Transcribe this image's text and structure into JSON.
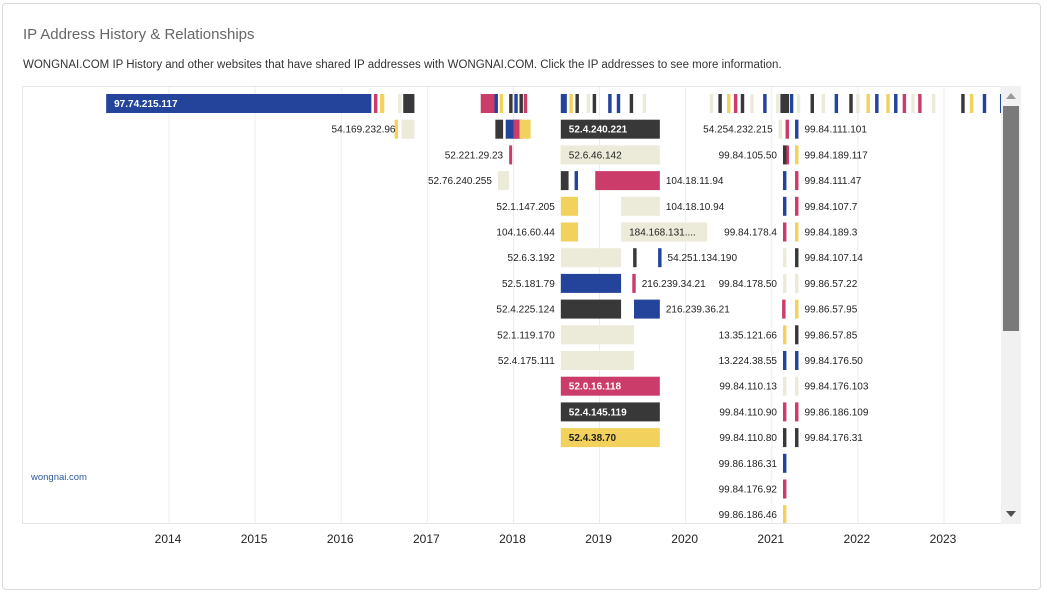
{
  "header": {
    "title": "IP Address History & Relationships",
    "description": "WONGNAI.COM IP History and other websites that have shared IP addresses with WONGNAI.COM. Click the IP addresses to see more information."
  },
  "domain_link": "wongnai.com",
  "colors": {
    "blue": "#23449a",
    "dark": "#383838",
    "pink": "#cc3c6b",
    "yellow": "#f2d15c",
    "beige": "#ecead8",
    "grid": "#ececec",
    "axis_text": "#222222",
    "scroll_thumb": "#7a7a7a"
  },
  "chart_data": {
    "type": "timeline",
    "xlabel": "",
    "ylabel": "",
    "x_ticks": [
      "2014",
      "2015",
      "2016",
      "2017",
      "2018",
      "2019",
      "2020",
      "2021",
      "2022",
      "2023"
    ],
    "xlim": [
      2013.25,
      2023.8
    ],
    "rows_visible": 17,
    "ranges": [
      {
        "label": "97.74.215.117",
        "row": 0,
        "start": 2013.27,
        "end": 2016.35,
        "color": "blue",
        "label_inside": true
      },
      {
        "label": "54.169.232.96",
        "row": 1,
        "start": 2016.7,
        "end": 2016.85,
        "color": "beige"
      },
      {
        "label": "52.221.29.23",
        "row": 2,
        "start": 2017.95,
        "end": 2017.98,
        "color": "pink"
      },
      {
        "label": "52.76.240.255",
        "row": 3,
        "start": 2017.82,
        "end": 2017.95,
        "color": "beige"
      },
      {
        "label": "52.1.147.205",
        "row": 4,
        "start": 2018.55,
        "end": 2018.75,
        "color": "yellow"
      },
      {
        "label": "104.16.60.44",
        "row": 5,
        "start": 2018.55,
        "end": 2018.75,
        "color": "yellow"
      },
      {
        "label": "52.6.3.192",
        "row": 6,
        "start": 2018.55,
        "end": 2019.25,
        "color": "beige"
      },
      {
        "label": "52.5.181.79",
        "row": 7,
        "start": 2018.55,
        "end": 2019.25,
        "color": "blue"
      },
      {
        "label": "52.4.225.124",
        "row": 8,
        "start": 2018.55,
        "end": 2019.25,
        "color": "dark"
      },
      {
        "label": "52.1.119.170",
        "row": 9,
        "start": 2018.55,
        "end": 2019.4,
        "color": "beige"
      },
      {
        "label": "52.4.175.111",
        "row": 10,
        "start": 2018.55,
        "end": 2019.4,
        "color": "beige"
      },
      {
        "label": "52.0.16.118",
        "row": 11,
        "start": 2018.55,
        "end": 2019.7,
        "color": "pink",
        "label_inside": true
      },
      {
        "label": "52.4.145.119",
        "row": 12,
        "start": 2018.55,
        "end": 2019.7,
        "color": "dark",
        "label_inside": true
      },
      {
        "label": "52.4.38.70",
        "row": 13,
        "start": 2018.55,
        "end": 2019.7,
        "color": "yellow",
        "label_inside": true
      },
      {
        "label": "52.4.240.221",
        "row": 1,
        "start": 2018.55,
        "end": 2019.7,
        "color": "dark",
        "label_inside": true
      },
      {
        "label": "52.6.46.142",
        "row": 2,
        "start": 2018.55,
        "end": 2019.7,
        "color": "beige",
        "label_inside": true
      },
      {
        "label": "104.18.11.94",
        "row": 3,
        "start": 2018.95,
        "end": 2019.7,
        "color": "pink",
        "label_after": true
      },
      {
        "label": "104.18.10.94",
        "row": 4,
        "start": 2019.25,
        "end": 2019.7,
        "color": "beige",
        "label_after": true
      },
      {
        "label": "184.168.131....",
        "row": 5,
        "start": 2019.25,
        "end": 2020.25,
        "color": "beige",
        "label_inside": true
      },
      {
        "label": "54.251.134.190",
        "row": 6,
        "start": 2019.68,
        "end": 2019.72,
        "color": "blue",
        "label_after": true
      },
      {
        "label": "216.239.34.21",
        "row": 7,
        "start": 2019.38,
        "end": 2019.42,
        "color": "pink",
        "label_after": true
      },
      {
        "label": "216.239.36.21",
        "row": 8,
        "start": 2019.4,
        "end": 2019.7,
        "color": "blue",
        "label_after": true
      },
      {
        "label": "54.254.232.215",
        "row": 1,
        "start": 2021.08,
        "end": 2021.12,
        "color": "beige"
      },
      {
        "label": "99.84.105.50",
        "row": 2,
        "start": 2021.13,
        "end": 2021.17,
        "color": "dark"
      },
      {
        "label": "99.84.178.4",
        "row": 5,
        "start": 2021.13,
        "end": 2021.17,
        "color": "pink"
      },
      {
        "label": "99.84.178.50",
        "row": 7,
        "start": 2021.13,
        "end": 2021.17,
        "color": "beige"
      },
      {
        "label": "13.35.121.66",
        "row": 9,
        "start": 2021.13,
        "end": 2021.17,
        "color": "yellow"
      },
      {
        "label": "13.224.38.55",
        "row": 10,
        "start": 2021.13,
        "end": 2021.17,
        "color": "blue"
      },
      {
        "label": "99.84.110.13",
        "row": 11,
        "start": 2021.13,
        "end": 2021.17,
        "color": "beige"
      },
      {
        "label": "99.84.110.90",
        "row": 12,
        "start": 2021.13,
        "end": 2021.17,
        "color": "pink"
      },
      {
        "label": "99.84.110.80",
        "row": 13,
        "start": 2021.13,
        "end": 2021.17,
        "color": "dark"
      },
      {
        "label": "99.86.186.31",
        "row": 14,
        "start": 2021.13,
        "end": 2021.17,
        "color": "blue"
      },
      {
        "label": "99.84.176.92",
        "row": 15,
        "start": 2021.13,
        "end": 2021.17,
        "color": "pink"
      },
      {
        "label": "99.86.186.46",
        "row": 16,
        "start": 2021.13,
        "end": 2021.17,
        "color": "yellow"
      },
      {
        "label": "99.84.111.101",
        "row": 1,
        "start": 2021.27,
        "end": 2021.31,
        "color": "blue",
        "label_after": true
      },
      {
        "label": "99.84.189.117",
        "row": 2,
        "start": 2021.27,
        "end": 2021.31,
        "color": "yellow",
        "label_after": true
      },
      {
        "label": "99.84.111.47",
        "row": 3,
        "start": 2021.27,
        "end": 2021.31,
        "color": "pink",
        "label_after": true
      },
      {
        "label": "99.84.107.7",
        "row": 4,
        "start": 2021.27,
        "end": 2021.31,
        "color": "pink",
        "label_after": true
      },
      {
        "label": "99.84.189.3",
        "row": 5,
        "start": 2021.27,
        "end": 2021.31,
        "color": "yellow",
        "label_after": true
      },
      {
        "label": "99.84.107.14",
        "row": 6,
        "start": 2021.27,
        "end": 2021.31,
        "color": "dark",
        "label_after": true
      },
      {
        "label": "99.86.57.22",
        "row": 7,
        "start": 2021.27,
        "end": 2021.31,
        "color": "beige",
        "label_after": true
      },
      {
        "label": "99.86.57.95",
        "row": 8,
        "start": 2021.27,
        "end": 2021.31,
        "color": "yellow",
        "label_after": true
      },
      {
        "label": "99.86.57.85",
        "row": 9,
        "start": 2021.27,
        "end": 2021.31,
        "color": "dark",
        "label_after": true
      },
      {
        "label": "99.84.176.50",
        "row": 10,
        "start": 2021.27,
        "end": 2021.31,
        "color": "blue",
        "label_after": true
      },
      {
        "label": "99.84.176.103",
        "row": 11,
        "start": 2021.27,
        "end": 2021.31,
        "color": "beige",
        "label_after": true
      },
      {
        "label": "99.86.186.109",
        "row": 12,
        "start": 2021.27,
        "end": 2021.31,
        "color": "pink",
        "label_after": true
      },
      {
        "label": "99.84.176.31",
        "row": 13,
        "start": 2021.27,
        "end": 2021.31,
        "color": "dark",
        "label_after": true
      }
    ],
    "unlabeled_marks": [
      {
        "row": 0,
        "start": 2016.38,
        "end": 2016.42,
        "color": "pink"
      },
      {
        "row": 0,
        "start": 2016.45,
        "end": 2016.5,
        "color": "yellow"
      },
      {
        "row": 0,
        "start": 2016.66,
        "end": 2016.7,
        "color": "beige"
      },
      {
        "row": 0,
        "start": 2016.72,
        "end": 2016.85,
        "color": "dark"
      },
      {
        "row": 0,
        "start": 2017.62,
        "end": 2017.78,
        "color": "pink"
      },
      {
        "row": 0,
        "start": 2017.78,
        "end": 2017.82,
        "color": "blue"
      },
      {
        "row": 0,
        "start": 2017.84,
        "end": 2017.88,
        "color": "yellow"
      },
      {
        "row": 0,
        "start": 2017.95,
        "end": 2017.99,
        "color": "dark"
      },
      {
        "row": 0,
        "start": 2018.01,
        "end": 2018.05,
        "color": "blue"
      },
      {
        "row": 0,
        "start": 2018.07,
        "end": 2018.11,
        "color": "dark"
      },
      {
        "row": 0,
        "start": 2018.12,
        "end": 2018.16,
        "color": "pink"
      },
      {
        "row": 0,
        "start": 2018.55,
        "end": 2018.62,
        "color": "blue"
      },
      {
        "row": 0,
        "start": 2018.65,
        "end": 2018.69,
        "color": "yellow"
      },
      {
        "row": 0,
        "start": 2018.72,
        "end": 2018.76,
        "color": "dark"
      },
      {
        "row": 0,
        "start": 2018.85,
        "end": 2018.89,
        "color": "beige"
      },
      {
        "row": 0,
        "start": 2018.92,
        "end": 2018.96,
        "color": "dark"
      },
      {
        "row": 0,
        "start": 2019.1,
        "end": 2019.14,
        "color": "blue"
      },
      {
        "row": 0,
        "start": 2019.2,
        "end": 2019.24,
        "color": "blue"
      },
      {
        "row": 0,
        "start": 2019.35,
        "end": 2019.39,
        "color": "dark"
      },
      {
        "row": 0,
        "start": 2019.5,
        "end": 2019.54,
        "color": "beige"
      },
      {
        "row": 0,
        "start": 2020.28,
        "end": 2020.32,
        "color": "beige"
      },
      {
        "row": 0,
        "start": 2020.38,
        "end": 2020.42,
        "color": "dark"
      },
      {
        "row": 0,
        "start": 2020.48,
        "end": 2020.52,
        "color": "yellow"
      },
      {
        "row": 0,
        "start": 2020.56,
        "end": 2020.6,
        "color": "pink"
      },
      {
        "row": 0,
        "start": 2020.64,
        "end": 2020.68,
        "color": "dark"
      },
      {
        "row": 0,
        "start": 2020.75,
        "end": 2020.79,
        "color": "beige"
      },
      {
        "row": 0,
        "start": 2020.9,
        "end": 2020.94,
        "color": "blue"
      },
      {
        "row": 0,
        "start": 2021.05,
        "end": 2021.09,
        "color": "beige"
      },
      {
        "row": 0,
        "start": 2021.1,
        "end": 2021.2,
        "color": "dark"
      },
      {
        "row": 0,
        "start": 2021.21,
        "end": 2021.25,
        "color": "blue"
      },
      {
        "row": 0,
        "start": 2021.29,
        "end": 2021.33,
        "color": "beige"
      },
      {
        "row": 0,
        "start": 2021.45,
        "end": 2021.49,
        "color": "dark"
      },
      {
        "row": 0,
        "start": 2021.58,
        "end": 2021.62,
        "color": "beige"
      },
      {
        "row": 0,
        "start": 2021.73,
        "end": 2021.77,
        "color": "blue"
      },
      {
        "row": 0,
        "start": 2021.9,
        "end": 2021.94,
        "color": "dark"
      },
      {
        "row": 0,
        "start": 2021.98,
        "end": 2022.02,
        "color": "beige"
      },
      {
        "row": 0,
        "start": 2022.1,
        "end": 2022.14,
        "color": "yellow"
      },
      {
        "row": 0,
        "start": 2022.2,
        "end": 2022.24,
        "color": "blue"
      },
      {
        "row": 0,
        "start": 2022.33,
        "end": 2022.37,
        "color": "yellow"
      },
      {
        "row": 0,
        "start": 2022.42,
        "end": 2022.46,
        "color": "blue"
      },
      {
        "row": 0,
        "start": 2022.52,
        "end": 2022.56,
        "color": "pink"
      },
      {
        "row": 0,
        "start": 2022.62,
        "end": 2022.66,
        "color": "beige"
      },
      {
        "row": 0,
        "start": 2022.7,
        "end": 2022.74,
        "color": "pink"
      },
      {
        "row": 0,
        "start": 2022.86,
        "end": 2022.9,
        "color": "beige"
      },
      {
        "row": 0,
        "start": 2023.2,
        "end": 2023.24,
        "color": "dark"
      },
      {
        "row": 0,
        "start": 2023.3,
        "end": 2023.34,
        "color": "yellow"
      },
      {
        "row": 0,
        "start": 2023.45,
        "end": 2023.49,
        "color": "blue"
      },
      {
        "row": 0,
        "start": 2023.65,
        "end": 2023.69,
        "color": "blue"
      },
      {
        "row": 1,
        "start": 2016.62,
        "end": 2016.66,
        "color": "yellow"
      },
      {
        "row": 1,
        "start": 2017.79,
        "end": 2017.88,
        "color": "dark"
      },
      {
        "row": 1,
        "start": 2017.91,
        "end": 2018.1,
        "color": "blue"
      },
      {
        "row": 1,
        "start": 2018.0,
        "end": 2018.07,
        "color": "pink"
      },
      {
        "row": 1,
        "start": 2018.07,
        "end": 2018.2,
        "color": "yellow"
      },
      {
        "row": 1,
        "start": 2021.16,
        "end": 2021.2,
        "color": "pink"
      },
      {
        "row": 2,
        "start": 2018.55,
        "end": 2018.57,
        "color": "yellow"
      },
      {
        "row": 2,
        "start": 2021.16,
        "end": 2021.2,
        "color": "pink"
      },
      {
        "row": 3,
        "start": 2018.55,
        "end": 2018.64,
        "color": "dark"
      },
      {
        "row": 3,
        "start": 2018.71,
        "end": 2018.75,
        "color": "blue"
      },
      {
        "row": 3,
        "start": 2021.13,
        "end": 2021.17,
        "color": "blue"
      },
      {
        "row": 4,
        "start": 2021.13,
        "end": 2021.17,
        "color": "blue"
      },
      {
        "row": 6,
        "start": 2019.39,
        "end": 2019.43,
        "color": "dark"
      },
      {
        "row": 6,
        "start": 2021.13,
        "end": 2021.17,
        "color": "beige"
      },
      {
        "row": 8,
        "start": 2021.12,
        "end": 2021.16,
        "color": "pink"
      }
    ]
  }
}
